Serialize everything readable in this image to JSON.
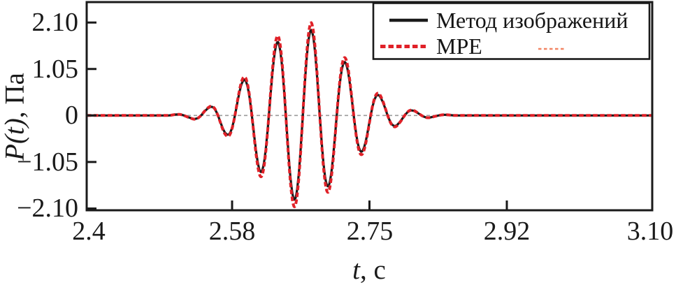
{
  "chart_data": {
    "type": "line",
    "xlabel": {
      "variable": "t",
      "unit_suffix": ", с",
      "full": "t, с"
    },
    "ylabel": {
      "variable": "P(t)",
      "unit_suffix": ", Па",
      "full": "P(t), Па"
    },
    "x_axis": {
      "min": 2.4,
      "max": 3.1,
      "ticks": [
        {
          "value": 2.4,
          "label": "2.4"
        },
        {
          "value": 2.58,
          "label": "2.58"
        },
        {
          "value": 2.75,
          "label": "2.75"
        },
        {
          "value": 2.92,
          "label": "2.92"
        },
        {
          "value": 3.1,
          "label": "3.10"
        }
      ]
    },
    "y_axis": {
      "min": -2.14,
      "max": 2.56,
      "ticks": [
        {
          "value": 2.1,
          "label": "2.10"
        },
        {
          "value": 1.05,
          "label": "1.05"
        },
        {
          "value": 0,
          "label": "0"
        },
        {
          "value": -1.05,
          "label": "−1.05"
        },
        {
          "value": -2.1,
          "label": "−2.10"
        }
      ]
    },
    "zero_line": {
      "value": 0,
      "color": "#9a9a9a",
      "style": "dashed"
    },
    "grid": "off",
    "legend_position": "top-right",
    "series": [
      {
        "name": "Метод изображений",
        "color": "#1a1a1a",
        "line_style": "solid",
        "line_width": 3.2,
        "amplitude_scale": 1.0
      },
      {
        "name": "МРЕ",
        "color": "#e02128",
        "line_style": "dotted",
        "line_width": 4.0,
        "amplitude_scale": 1.085
      }
    ],
    "signal_model": {
      "type": "modulated_wave_packet",
      "formula": "P(t) = env(t) · sin(2π·f·(t − t_zero)) · amplitude_scale",
      "carrier_frequency_hz": 23.8,
      "carrier_zero_crossing_s": 2.6675,
      "sample_step_s": 0.0005,
      "envelope_t_amp": [
        [
          2.4,
          0.0
        ],
        [
          2.5,
          0.0
        ],
        [
          2.529,
          0.06
        ],
        [
          2.551,
          0.17
        ],
        [
          2.573,
          0.42
        ],
        [
          2.594,
          0.79
        ],
        [
          2.616,
          1.29
        ],
        [
          2.637,
          1.67
        ],
        [
          2.657,
          1.9
        ],
        [
          2.6675,
          1.96
        ],
        [
          2.678,
          1.93
        ],
        [
          2.7,
          1.58
        ],
        [
          2.722,
          1.16
        ],
        [
          2.743,
          0.77
        ],
        [
          2.765,
          0.4
        ],
        [
          2.787,
          0.19
        ],
        [
          2.808,
          0.09
        ],
        [
          2.83,
          0.03
        ],
        [
          2.86,
          0.0
        ],
        [
          3.1,
          0.0
        ]
      ]
    },
    "extrema_points_black_t_pa": [
      [
        2.551,
        0.17
      ],
      [
        2.573,
        -0.42
      ],
      [
        2.594,
        0.79
      ],
      [
        2.616,
        -1.29
      ],
      [
        2.637,
        1.67
      ],
      [
        2.657,
        -1.9
      ],
      [
        2.678,
        1.93
      ],
      [
        2.7,
        -1.58
      ],
      [
        2.722,
        1.16
      ],
      [
        2.743,
        -0.77
      ],
      [
        2.765,
        0.4
      ],
      [
        2.787,
        -0.19
      ],
      [
        2.808,
        0.09
      ]
    ]
  },
  "legend": {
    "entries": [
      {
        "label": "Метод изображений",
        "color": "#1a1a1a",
        "sample": "solid-line"
      },
      {
        "label": "МРЕ",
        "color": "#e02128",
        "sample": "dotted-line"
      }
    ],
    "extra_dash_sample": {
      "color": "#f28563",
      "style": "dashed"
    },
    "border_color": "#1a1a1a"
  },
  "colors": {
    "axis": "#1a1a1a",
    "background": "#ffffff"
  }
}
